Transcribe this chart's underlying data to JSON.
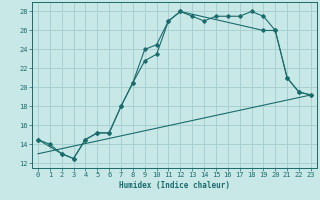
{
  "xlabel": "Humidex (Indice chaleur)",
  "bg_color": "#c8e8e8",
  "line_color": "#1a6b6b",
  "grid_color": "#a8d0d0",
  "xlim": [
    -0.5,
    23.5
  ],
  "ylim": [
    11.5,
    29.0
  ],
  "xticks": [
    0,
    1,
    2,
    3,
    4,
    5,
    6,
    7,
    8,
    9,
    10,
    11,
    12,
    13,
    14,
    15,
    16,
    17,
    18,
    19,
    20,
    21,
    22,
    23
  ],
  "yticks": [
    12,
    14,
    16,
    18,
    20,
    22,
    24,
    26,
    28
  ],
  "curve1_x": [
    0,
    1,
    2,
    3,
    4,
    5,
    6,
    7,
    8,
    9,
    10,
    11,
    12,
    13,
    14,
    15,
    16,
    17,
    18,
    19,
    20,
    21,
    22,
    23
  ],
  "curve1_y": [
    14.5,
    14.0,
    13.0,
    12.5,
    14.5,
    15.2,
    15.2,
    18.0,
    20.5,
    22.8,
    23.5,
    27.0,
    28.0,
    27.5,
    27.0,
    27.5,
    27.5,
    27.5,
    28.0,
    27.5,
    26.0,
    21.0,
    19.5,
    19.2
  ],
  "curve2_x": [
    0,
    2,
    3,
    4,
    5,
    6,
    7,
    8,
    9,
    10,
    11,
    12,
    19,
    20,
    21,
    22,
    23
  ],
  "curve2_y": [
    14.5,
    13.0,
    12.5,
    14.5,
    15.2,
    15.2,
    18.0,
    20.5,
    24.0,
    24.5,
    27.0,
    28.0,
    26.0,
    26.0,
    21.0,
    19.5,
    19.2
  ],
  "curve3_x": [
    0,
    23
  ],
  "curve3_y": [
    13.0,
    19.2
  ]
}
